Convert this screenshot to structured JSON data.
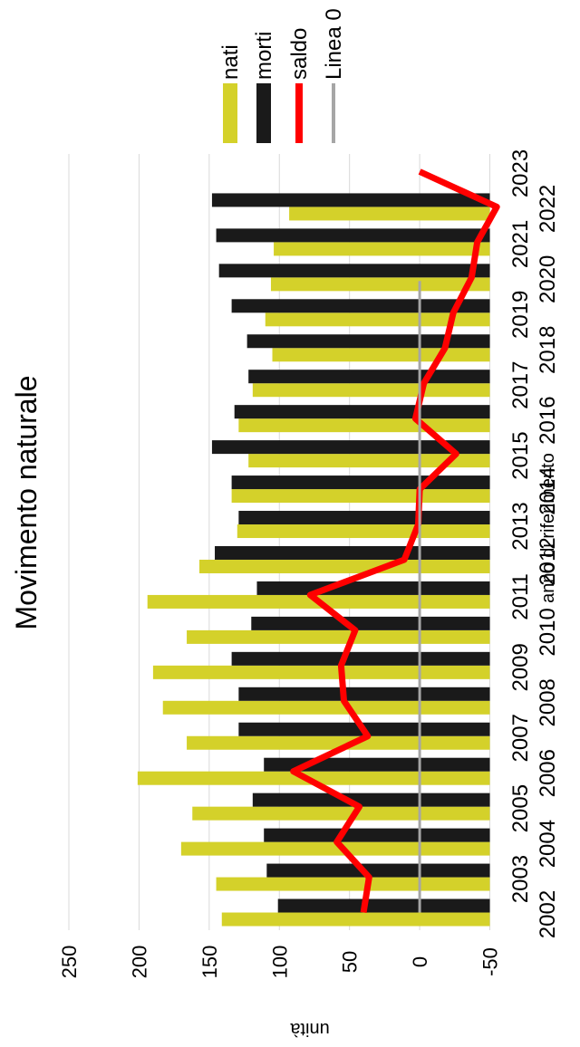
{
  "chart_data": {
    "type": "bar",
    "title": "Movimento naturale",
    "xlabel": "anno di riferimento",
    "ylabel": "unità",
    "ylim": [
      -50,
      250
    ],
    "yticks": [
      -50,
      0,
      50,
      100,
      150,
      200,
      250
    ],
    "grid": true,
    "legend_position": "top-right",
    "categories": [
      "2002",
      "2003",
      "2004",
      "2005",
      "2006",
      "2007",
      "2008",
      "2009",
      "2010",
      "2011",
      "2012",
      "2013",
      "2014",
      "2015",
      "2016",
      "2017",
      "2018",
      "2019",
      "2020",
      "2021",
      "2022",
      "2023"
    ],
    "series": [
      {
        "name": "nati",
        "kind": "bar",
        "color": "#d4d12a",
        "values": [
          141,
          145,
          170,
          162,
          201,
          166,
          183,
          190,
          166,
          194,
          157,
          130,
          134,
          122,
          129,
          119,
          105,
          110,
          106,
          104,
          93,
          null
        ]
      },
      {
        "name": "morti",
        "kind": "bar",
        "color": "#1a1a1a",
        "values": [
          101,
          109,
          111,
          119,
          111,
          129,
          129,
          134,
          120,
          116,
          146,
          129,
          134,
          148,
          132,
          122,
          123,
          134,
          143,
          145,
          148,
          null
        ]
      },
      {
        "name": "saldo",
        "kind": "line",
        "color": "#ff0000",
        "values": [
          40,
          36,
          59,
          43,
          90,
          37,
          54,
          56,
          46,
          78,
          11,
          1,
          0,
          -26,
          3,
          -3,
          -18,
          -24,
          -37,
          -41,
          -55,
          0
        ]
      },
      {
        "name": "Linea 0",
        "kind": "line",
        "color": "#a6a6a6",
        "values": [
          0,
          0,
          0,
          0,
          0,
          0,
          0,
          0,
          0,
          0,
          0,
          0,
          0,
          0,
          0,
          0,
          0,
          0,
          0,
          0,
          0,
          0
        ]
      }
    ]
  }
}
